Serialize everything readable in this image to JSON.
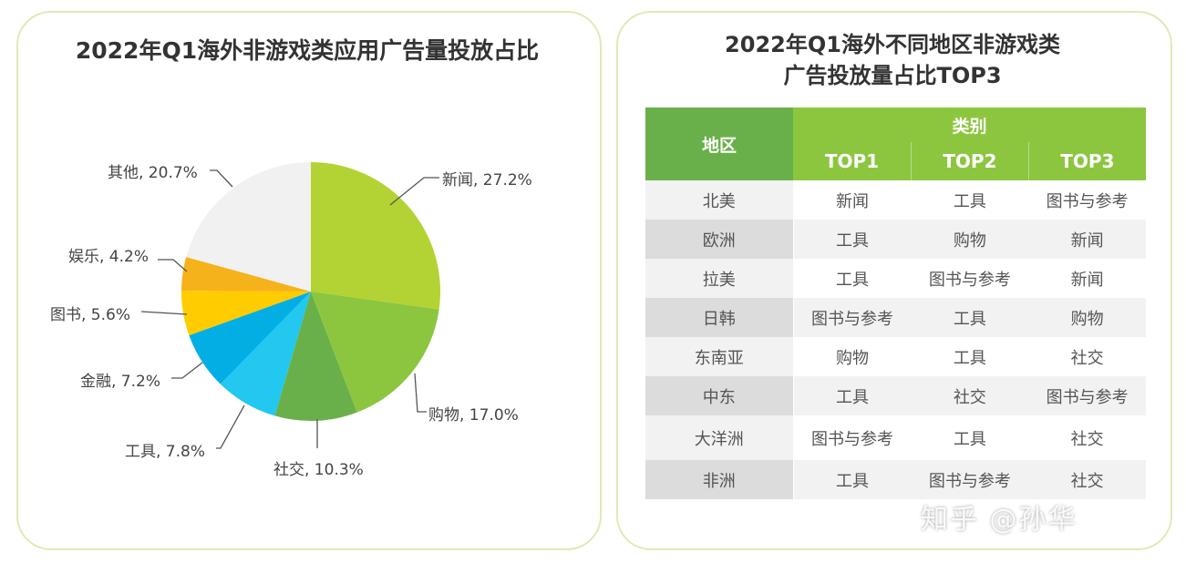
{
  "chart_data": [
    {
      "type": "pie",
      "title": "2022年Q1海外非游戏类应用广告量投放占比",
      "slices": [
        {
          "label": "新闻",
          "value": 27.2,
          "text": "新闻, 27.2%",
          "color": "#b3d334"
        },
        {
          "label": "购物",
          "value": 17.0,
          "text": "购物, 17.0%",
          "color": "#8cc63f"
        },
        {
          "label": "社交",
          "value": 10.3,
          "text": "社交, 10.3%",
          "color": "#6ab04a"
        },
        {
          "label": "工具",
          "value": 7.8,
          "text": "工具, 7.8%",
          "color": "#22c8f0"
        },
        {
          "label": "金融",
          "value": 7.2,
          "text": "金融, 7.2%",
          "color": "#03aee4"
        },
        {
          "label": "图书",
          "value": 5.6,
          "text": "图书, 5.6%",
          "color": "#ffcc00"
        },
        {
          "label": "娱乐",
          "value": 4.2,
          "text": "娱乐, 4.2%",
          "color": "#f6b21a"
        },
        {
          "label": "其他",
          "value": 20.7,
          "text": "其他, 20.7%",
          "color": "#f1f1f1"
        }
      ],
      "start": "top",
      "direction": "clockwise"
    },
    {
      "type": "table",
      "title_line1": "2022年Q1海外不同地区非游戏类",
      "title_line2": "广告投放量占比TOP3",
      "header_region": "地区",
      "header_category": "类别",
      "columns": [
        "TOP1",
        "TOP2",
        "TOP3"
      ],
      "rows": [
        [
          "北美",
          "新闻",
          "工具",
          "图书与参考"
        ],
        [
          "欧洲",
          "工具",
          "购物",
          "新闻"
        ],
        [
          "拉美",
          "工具",
          "图书与参考",
          "新闻"
        ],
        [
          "日韩",
          "图书与参考",
          "工具",
          "购物"
        ],
        [
          "东南亚",
          "购物",
          "工具",
          "社交"
        ],
        [
          "中东",
          "工具",
          "社交",
          "图书与参考"
        ],
        [
          "大洋洲",
          "图书与参考",
          "工具",
          "社交"
        ],
        [
          "非洲",
          "工具",
          "图书与参考",
          "社交"
        ]
      ]
    }
  ],
  "watermark": "知乎 @孙华"
}
